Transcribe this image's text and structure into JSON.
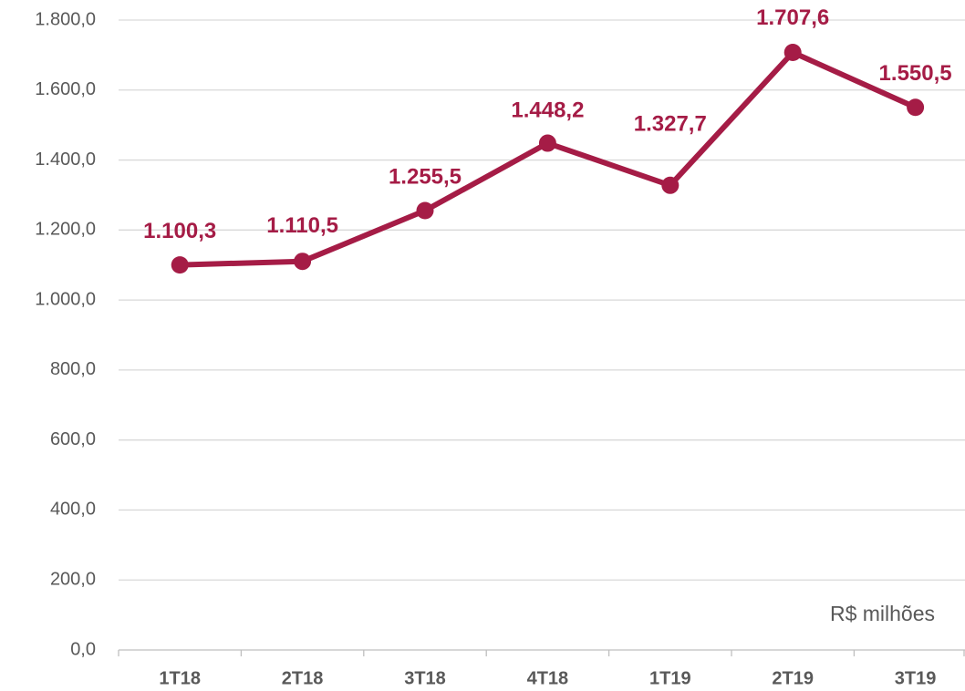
{
  "chart_data": {
    "type": "line",
    "categories": [
      "1T18",
      "2T18",
      "3T18",
      "4T18",
      "1T19",
      "2T19",
      "3T19"
    ],
    "series": [
      {
        "color": "#a51c46",
        "values": [
          1100.3,
          1110.5,
          1255.5,
          1448.2,
          1327.7,
          1707.6,
          1550.5
        ],
        "value_labels": [
          "1.100,3",
          "1.110,5",
          "1.255,5",
          "1.448,2",
          "1.327,7",
          "1.707,6",
          "1.550,5"
        ]
      }
    ],
    "ylim": [
      0,
      1800
    ],
    "yticks": [
      {
        "value": 0,
        "label": "0,0"
      },
      {
        "value": 200,
        "label": "200,0"
      },
      {
        "value": 400,
        "label": "400,0"
      },
      {
        "value": 600,
        "label": "600,0"
      },
      {
        "value": 800,
        "label": "800,0"
      },
      {
        "value": 1000,
        "label": "1.000,0"
      },
      {
        "value": 1200,
        "label": "1.200,0"
      },
      {
        "value": 1400,
        "label": "1.400,0"
      },
      {
        "value": 1600,
        "label": "1.600,0"
      },
      {
        "value": 1800,
        "label": "1.800,0"
      }
    ],
    "grid": true,
    "annotation": "R$ milhões"
  }
}
